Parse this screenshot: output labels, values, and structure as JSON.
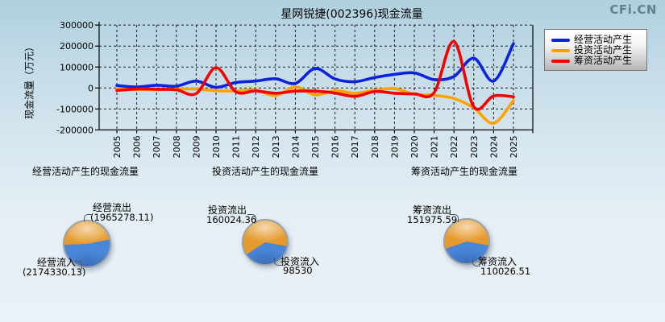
{
  "logo_text": "CFi.CN",
  "legend_title_note": "legend reads series names from chart_data.0.series",
  "chart_data": [
    {
      "type": "line",
      "title": "星网锐捷(002396)现金流量",
      "xlabel": "",
      "ylabel": "现金流量（万元）",
      "x": [
        2005,
        2006,
        2007,
        2008,
        2009,
        2010,
        2011,
        2012,
        2013,
        2014,
        2015,
        2016,
        2017,
        2018,
        2019,
        2020,
        2021,
        2022,
        2023,
        2024,
        2025
      ],
      "ylim": [
        -200000,
        300000
      ],
      "y_ticks": [
        300000,
        200000,
        100000,
        0,
        -100000,
        -200000
      ],
      "grid": true,
      "legend_position": "top-right",
      "series": [
        {
          "name": "经营活动产生",
          "color": "#0a23e0",
          "values": [
            12000,
            5000,
            13000,
            9000,
            33000,
            3000,
            26000,
            33000,
            44000,
            22000,
            93000,
            43000,
            30000,
            50000,
            65000,
            72000,
            40000,
            55000,
            142000,
            33000,
            212000
          ]
        },
        {
          "name": "投资活动产生",
          "color": "#ffa200",
          "values": [
            -5000,
            -7000,
            -8000,
            -6000,
            -5000,
            -13000,
            -14000,
            -10000,
            -36000,
            5000,
            -33000,
            -13000,
            -25000,
            -11000,
            -3000,
            -30000,
            -35000,
            -50000,
            -95000,
            -168000,
            -60000
          ]
        },
        {
          "name": "筹资活动产生",
          "color": "#f40000",
          "values": [
            -12000,
            -5000,
            -6000,
            -9000,
            -27000,
            97000,
            -18000,
            -14000,
            -25000,
            -15000,
            -15000,
            -24000,
            -40000,
            -17000,
            -25000,
            -28000,
            -22000,
            222000,
            -90000,
            -38000,
            -42000
          ]
        }
      ]
    },
    {
      "type": "pie",
      "title": "经营活动产生的现金流量",
      "slices": [
        {
          "label": "经营流出",
          "value": 1965278.11,
          "display": "(1965278.11)",
          "color": "#e59a2c"
        },
        {
          "label": "经营流入",
          "value": 2174330.13,
          "display": "(2174330.13)",
          "color": "#4a86d8"
        }
      ]
    },
    {
      "type": "pie",
      "title": "投资活动产生的现金流量",
      "slices": [
        {
          "label": "投资流出",
          "value": 160024.36,
          "display": "160024.36",
          "color": "#e59a2c"
        },
        {
          "label": "投资流入",
          "value": 98530,
          "display": "98530",
          "color": "#4a86d8"
        }
      ]
    },
    {
      "type": "pie",
      "title": "筹资活动产生的现金流量",
      "slices": [
        {
          "label": "筹资流出",
          "value": 151975.59,
          "display": "151975.59",
          "color": "#e59a2c"
        },
        {
          "label": "筹资流入",
          "value": 110026.51,
          "display": "110026.51",
          "color": "#4a86d8"
        }
      ]
    }
  ]
}
